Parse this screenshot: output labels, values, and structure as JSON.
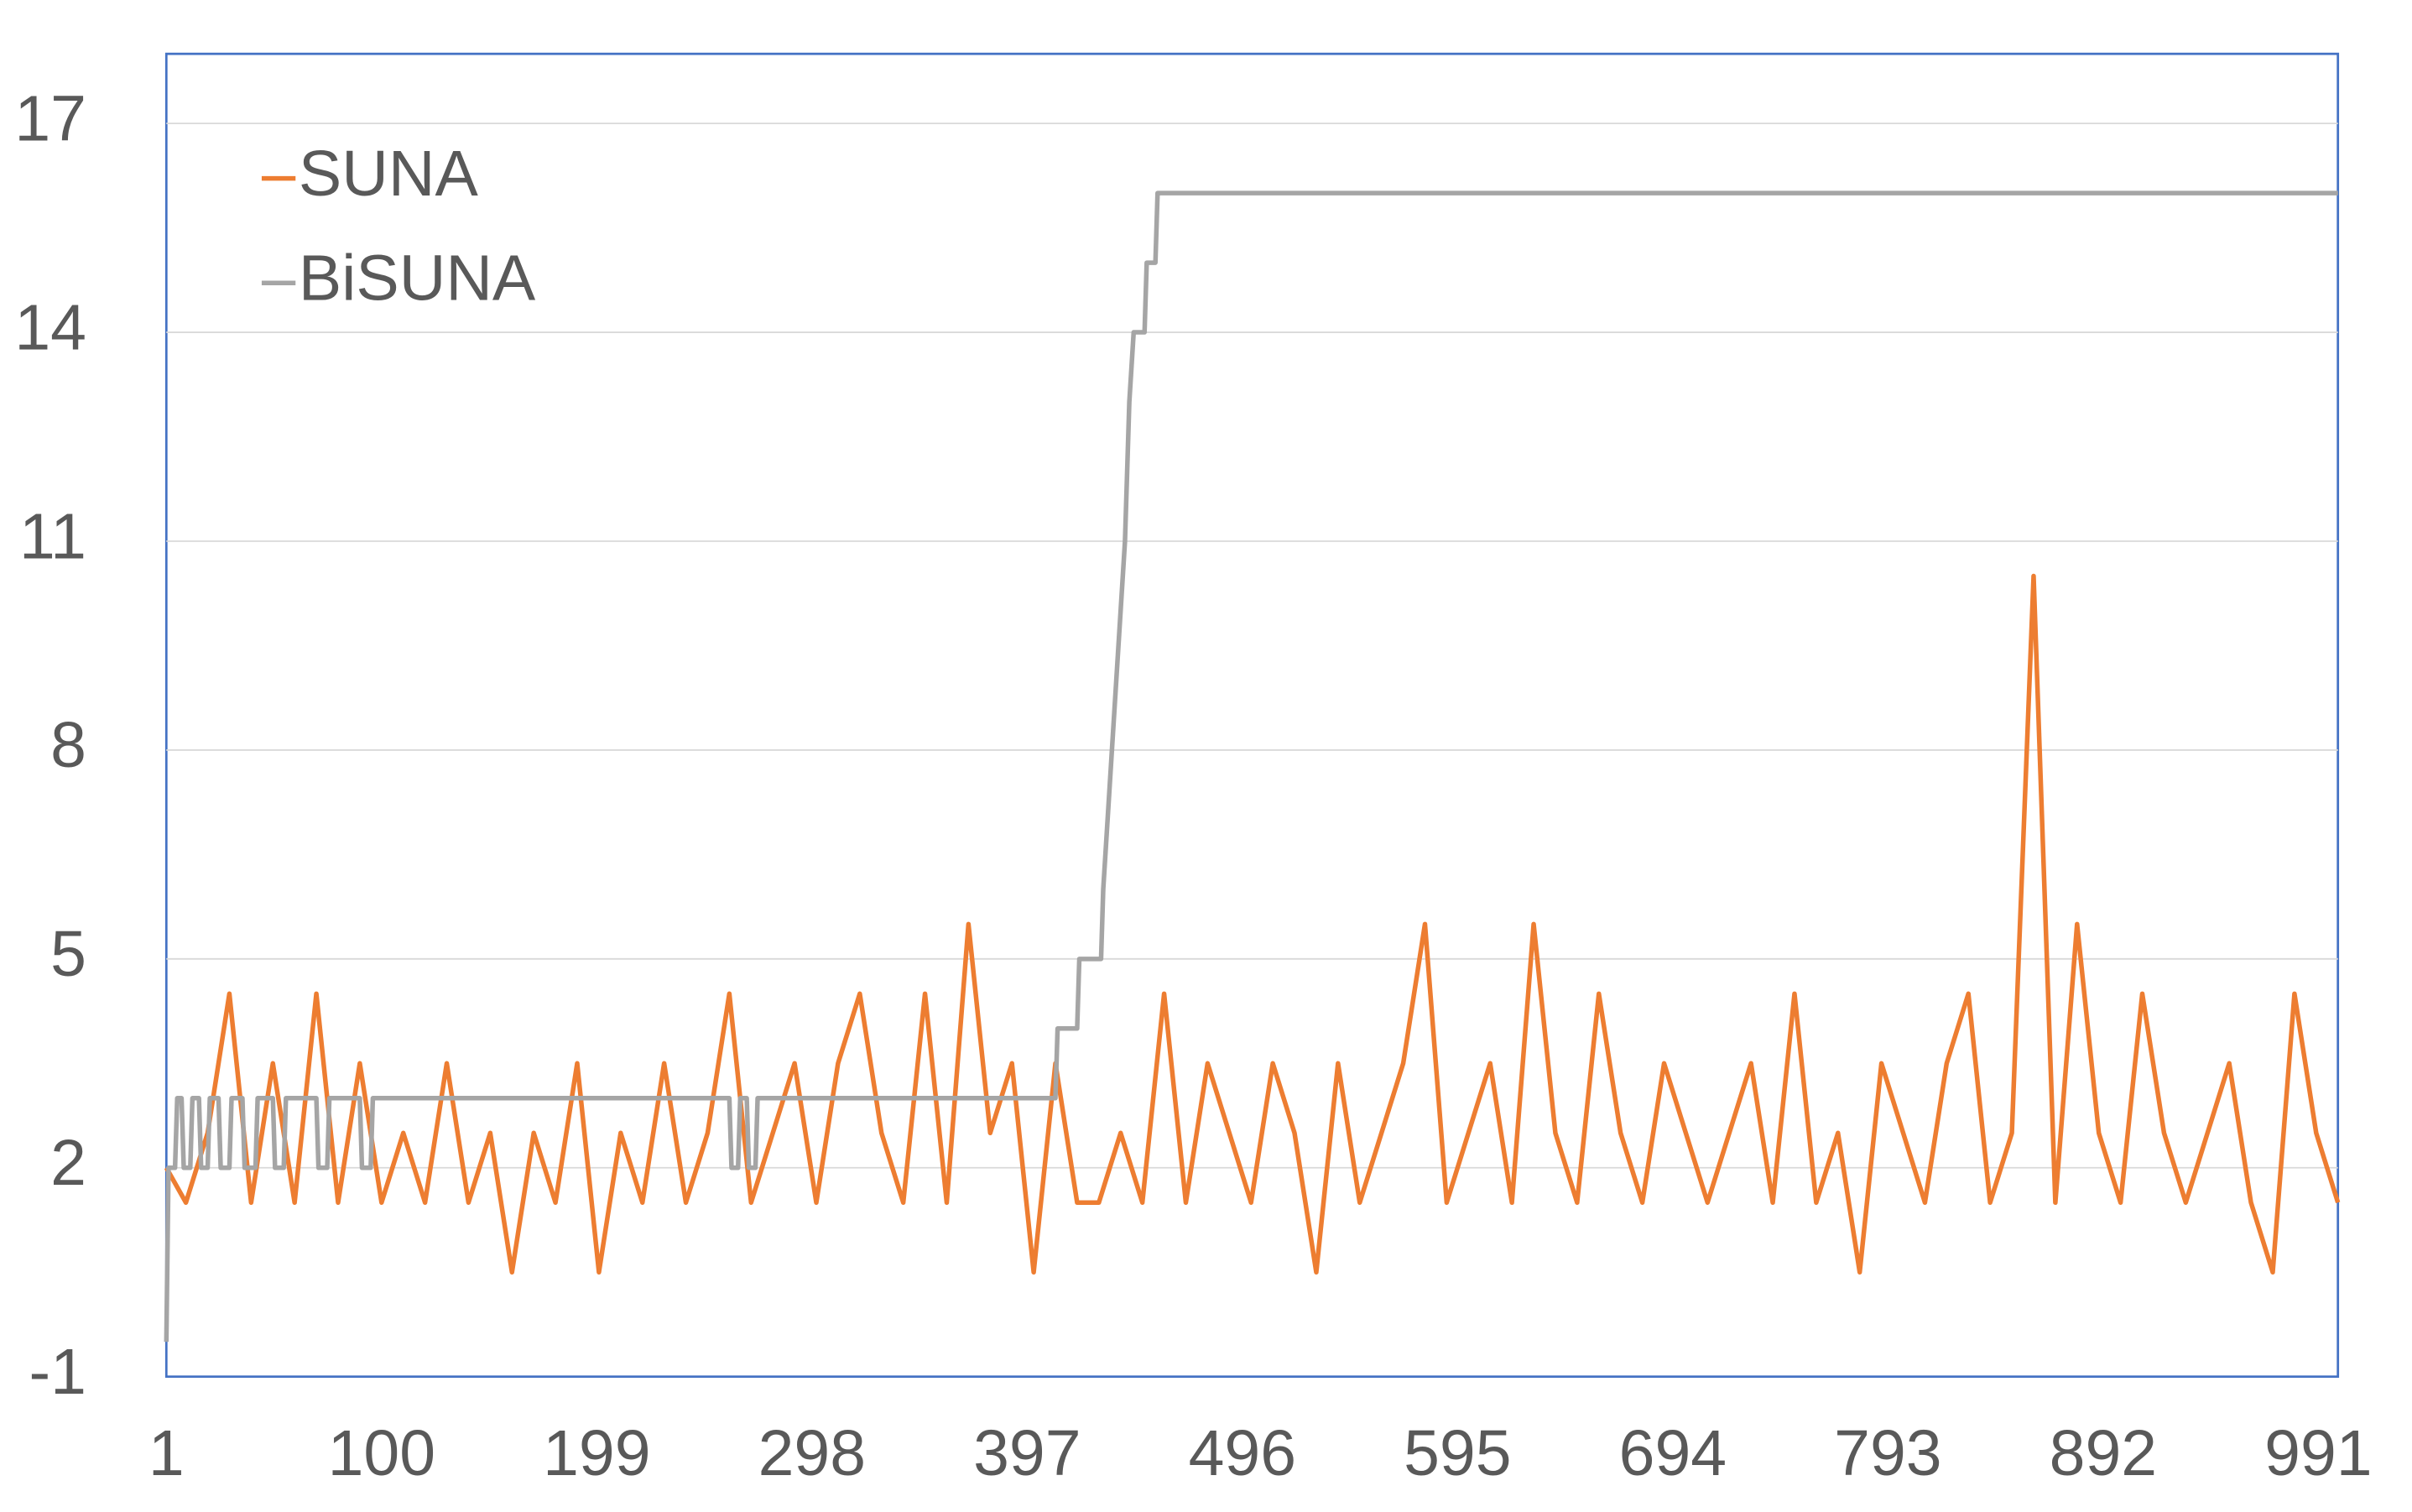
{
  "chart_data": {
    "type": "line",
    "xlim": [
      1,
      1000
    ],
    "xticks": [
      1,
      100,
      199,
      298,
      397,
      496,
      595,
      694,
      793,
      892,
      991
    ],
    "ylim": [
      -1,
      18
    ],
    "yticks": [
      -1,
      2,
      5,
      8,
      11,
      14,
      17
    ],
    "grid": true,
    "legend": "top-left",
    "series": [
      {
        "name": "SUNA",
        "color": "#ed7d31",
        "x": [
          1,
          10,
          20,
          30,
          40,
          50,
          60,
          70,
          80,
          90,
          100,
          110,
          120,
          130,
          140,
          150,
          160,
          170,
          180,
          190,
          200,
          210,
          220,
          230,
          240,
          250,
          260,
          270,
          280,
          290,
          300,
          310,
          320,
          330,
          340,
          350,
          360,
          370,
          380,
          390,
          400,
          410,
          420,
          430,
          440,
          450,
          460,
          470,
          480,
          490,
          500,
          510,
          520,
          530,
          540,
          550,
          560,
          570,
          580,
          590,
          600,
          610,
          620,
          630,
          640,
          650,
          660,
          670,
          680,
          690,
          700,
          710,
          720,
          730,
          740,
          750,
          760,
          770,
          780,
          790,
          800,
          810,
          820,
          830,
          840,
          850,
          860,
          870,
          880,
          890,
          900,
          910,
          920,
          930,
          940,
          950,
          960,
          970,
          980,
          990,
          1000
        ],
        "values": [
          2,
          1.5,
          2.5,
          4.5,
          1.5,
          3.5,
          1.5,
          4.5,
          1.5,
          3.5,
          1.5,
          2.5,
          1.5,
          3.5,
          1.5,
          2.5,
          0.5,
          2.5,
          1.5,
          3.5,
          0.5,
          2.5,
          1.5,
          3.5,
          1.5,
          2.5,
          4.5,
          1.5,
          2.5,
          3.5,
          1.5,
          3.5,
          4.5,
          2.5,
          1.5,
          4.5,
          1.5,
          5.5,
          2.5,
          3.5,
          0.5,
          3.5,
          1.5,
          1.5,
          2.5,
          1.5,
          4.5,
          1.5,
          3.5,
          2.5,
          1.5,
          3.5,
          2.5,
          0.5,
          3.5,
          1.5,
          2.5,
          3.5,
          5.5,
          1.5,
          2.5,
          3.5,
          1.5,
          5.5,
          2.5,
          1.5,
          4.5,
          2.5,
          1.5,
          3.5,
          2.5,
          1.5,
          2.5,
          3.5,
          1.5,
          4.5,
          1.5,
          2.5,
          0.5,
          3.5,
          2.5,
          1.5,
          3.5,
          4.5,
          1.5,
          2.5,
          10.5,
          1.5,
          5.5,
          2.5,
          1.5,
          4.5,
          2.5,
          1.5,
          2.5,
          3.5,
          1.5,
          0.5,
          4.5,
          2.5,
          1.5
        ]
      },
      {
        "name": "BiSUNA",
        "color": "#a5a5a5",
        "x": [
          1,
          2,
          5,
          6,
          8,
          9,
          12,
          13,
          16,
          17,
          20,
          21,
          25,
          26,
          30,
          31,
          36,
          37,
          42,
          43,
          50,
          51,
          55,
          56,
          70,
          71,
          75,
          76,
          90,
          91,
          95,
          96,
          260,
          261,
          264,
          265,
          268,
          269,
          272,
          273,
          410,
          411,
          420,
          421,
          431,
          432,
          434,
          436,
          438,
          440,
          442,
          443,
          444,
          446,
          451,
          452,
          456,
          457,
          1000
        ],
        "values": [
          -0.5,
          2,
          2,
          3,
          3,
          2,
          2,
          3,
          3,
          2,
          2,
          3,
          3,
          2,
          2,
          3,
          3,
          2,
          2,
          3,
          3,
          2,
          2,
          3,
          3,
          2,
          2,
          3,
          3,
          2,
          2,
          3,
          3,
          2,
          2,
          3,
          3,
          2,
          2,
          3,
          3,
          4,
          4,
          5,
          5,
          6,
          7,
          8,
          9,
          10,
          11,
          12,
          13,
          14,
          14,
          15,
          15,
          16,
          16
        ]
      }
    ]
  }
}
